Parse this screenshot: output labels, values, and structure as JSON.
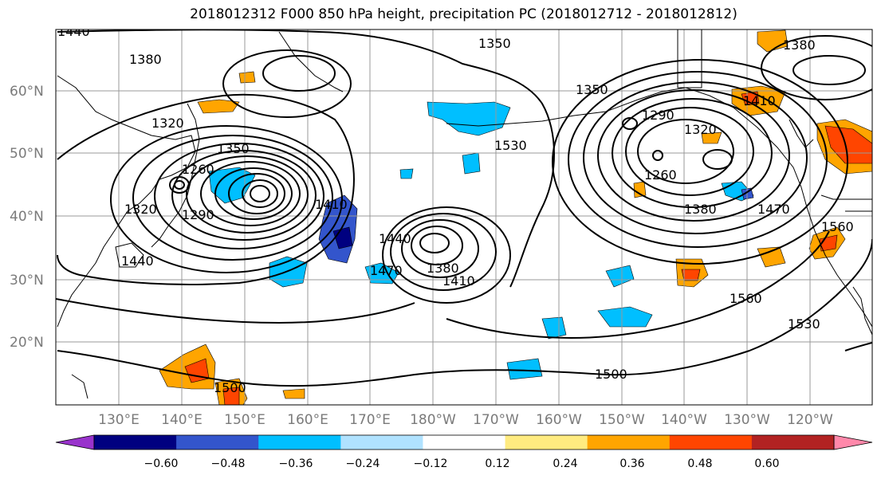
{
  "title": "2018012312 F000 850 hPa height, precipitation PC (2018012712 - 2018012812)",
  "map": {
    "lat_labels": [
      "60°N",
      "50°N",
      "40°N",
      "30°N",
      "20°N"
    ],
    "lon_labels": [
      "130°E",
      "140°E",
      "150°E",
      "160°E",
      "170°E",
      "180°W",
      "170°W",
      "160°W",
      "150°W",
      "140°W",
      "130°W",
      "120°W"
    ],
    "contour_labels": [
      "1440",
      "1380",
      "1320",
      "1350",
      "1260",
      "1290",
      "1410",
      "1320",
      "1440",
      "1470",
      "1380",
      "1410",
      "1500",
      "1440",
      "1350",
      "1530",
      "1290",
      "1320",
      "1260",
      "1380",
      "1470",
      "1410",
      "1380",
      "1560",
      "1560",
      "1530",
      "1500"
    ]
  },
  "colorbar": {
    "tick_labels": [
      "−0.60",
      "−0.48",
      "−0.36",
      "−0.24",
      "−0.12",
      "0.12",
      "0.24",
      "0.36",
      "0.48",
      "0.60"
    ],
    "colors": [
      "#9933cc",
      "#000080",
      "#3355cc",
      "#00bfff",
      "#b0e2ff",
      "#ffffff",
      "#ffeb80",
      "#ffa500",
      "#ff4500",
      "#b22222",
      "#ff88aa"
    ]
  }
}
